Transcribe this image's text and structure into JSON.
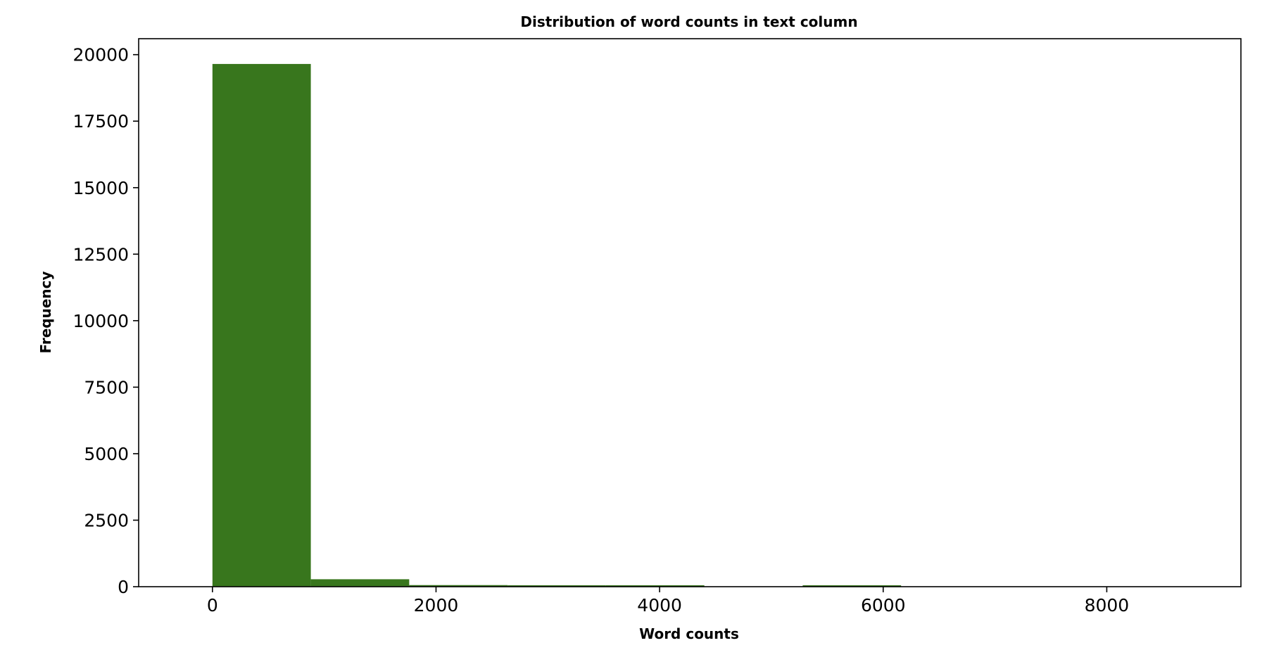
{
  "chart_data": {
    "type": "bar",
    "title": "Distribution of word counts in text column",
    "xlabel": "Word counts",
    "ylabel": "Frequency",
    "xlim": [
      -660,
      9200
    ],
    "ylim": [
      0,
      20600
    ],
    "bin_edges": [
      0,
      880,
      1760,
      2640,
      3520,
      4400,
      5280,
      6160,
      7040,
      7920,
      8800
    ],
    "values": [
      19650,
      280,
      60,
      50,
      40,
      0,
      40,
      0,
      0,
      0
    ],
    "x_ticks": [
      0,
      2000,
      4000,
      6000,
      8000
    ],
    "x_tick_labels": [
      "0",
      "2000",
      "4000",
      "6000",
      "8000"
    ],
    "y_ticks": [
      0,
      2500,
      5000,
      7500,
      10000,
      12500,
      15000,
      17500,
      20000
    ],
    "y_tick_labels": [
      "0",
      "2500",
      "5000",
      "7500",
      "10000",
      "12500",
      "15000",
      "17500",
      "20000"
    ],
    "bar_color": "#38761d",
    "grid": false,
    "legend": "none"
  }
}
